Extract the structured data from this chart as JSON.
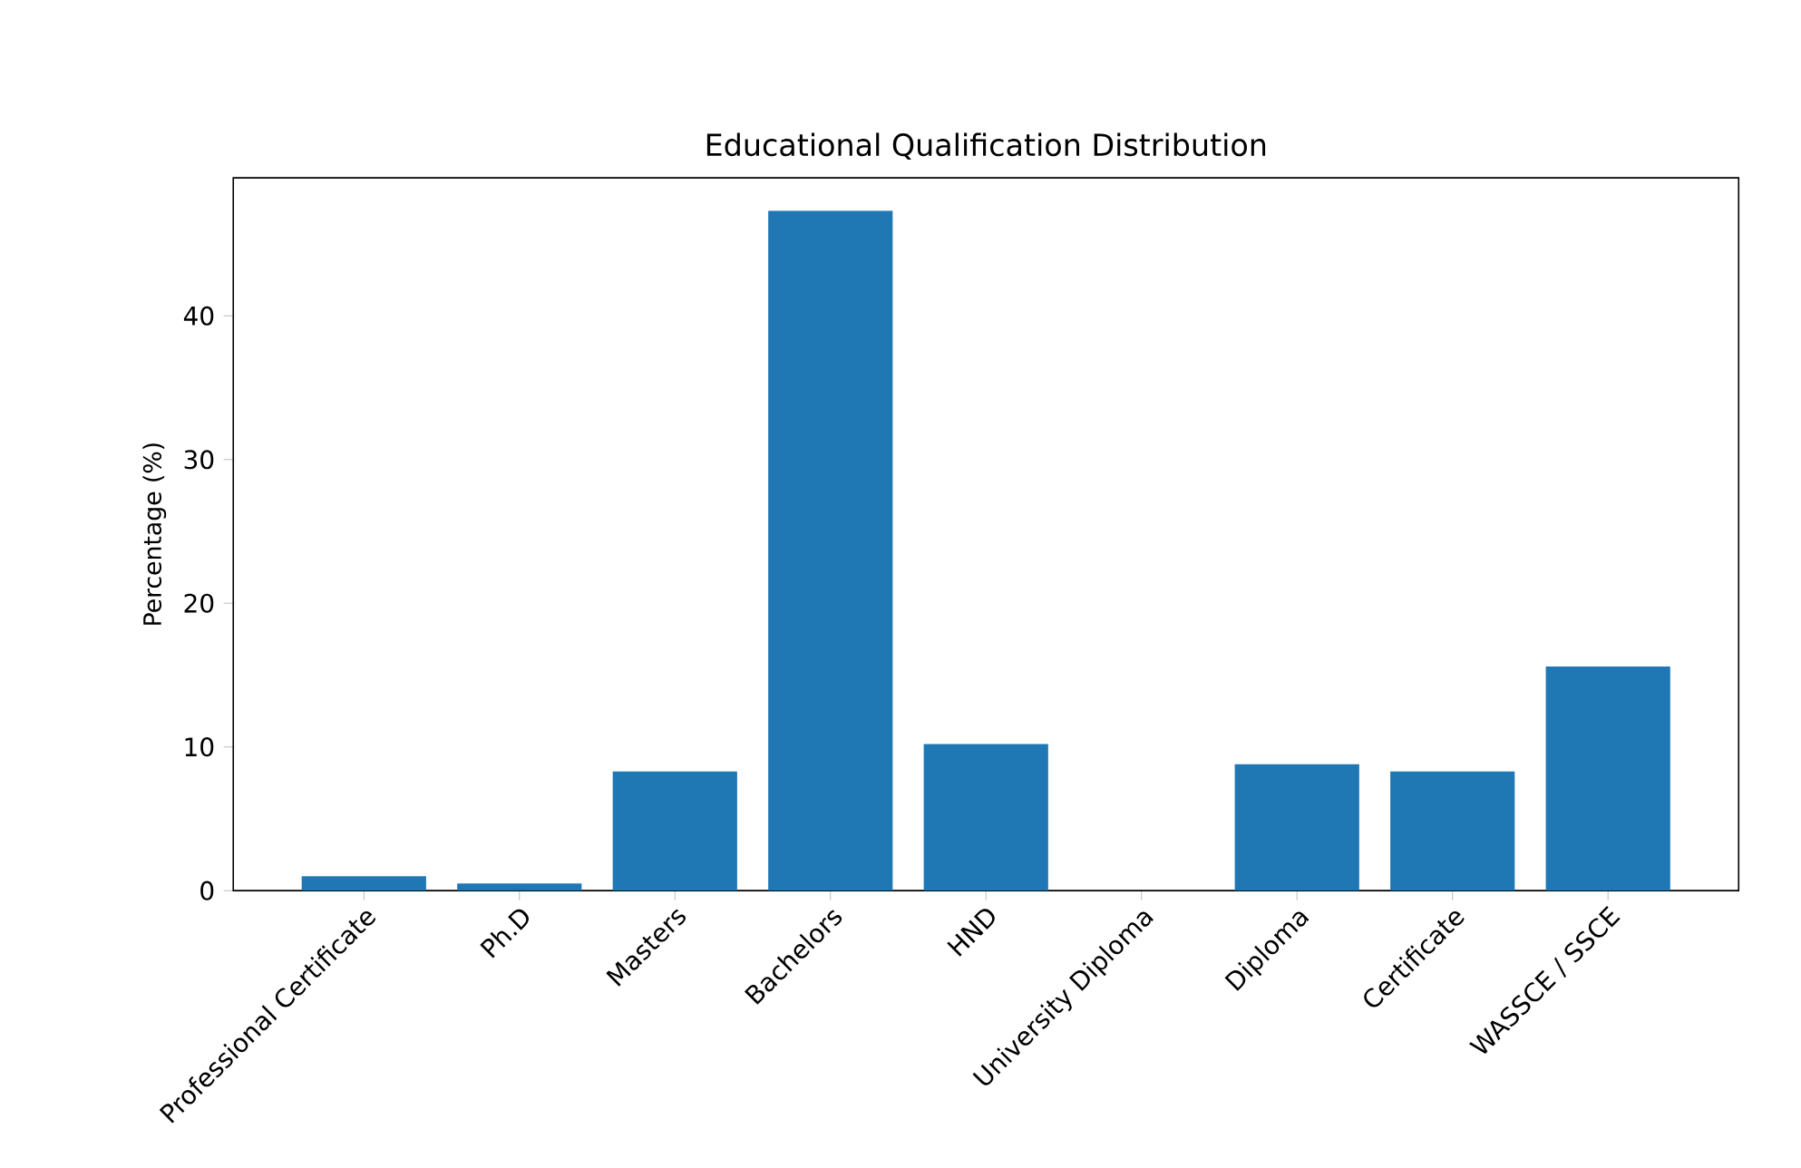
{
  "chart_data": {
    "type": "bar",
    "title": "Educational Qualification Distribution",
    "ylabel": "Percentage (%)",
    "categories": [
      "Professional Certificate",
      "Ph.D",
      "Masters",
      "Bachelors",
      "HND",
      "University Diploma",
      "Diploma",
      "Certificate",
      "WASSCE / SSCE"
    ],
    "values": [
      1.0,
      0.5,
      8.3,
      47.3,
      10.2,
      0,
      8.8,
      8.3,
      15.6
    ],
    "color": "#1f77b4",
    "ylim": [
      0,
      49.6
    ],
    "yticks": [
      0,
      10,
      20,
      30,
      40
    ]
  }
}
